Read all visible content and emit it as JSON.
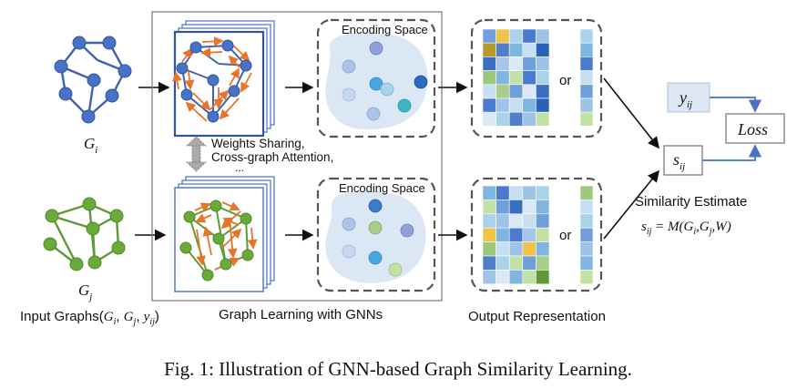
{
  "figure": {
    "caption": "Fig. 1: Illustration of GNN-based Graph Similarity Learning.",
    "labels": {
      "gi": "G",
      "gi_sub": "i",
      "gj": "G",
      "gj_sub": "j",
      "input_graphs": "Input Graphs(",
      "input_graphs_args": "G",
      "weights_sharing": "Weights Sharing,",
      "cross_graph_attention": "Cross-graph Attention,",
      "ellipsis": "...",
      "encoding_space_top": "Encoding Space",
      "encoding_space_bottom": "Encoding Space",
      "or_top": "or",
      "or_bottom": "or",
      "graph_learning": "Graph Learning with GNNs",
      "output_representation": "Output Representation",
      "y_ij": "y",
      "y_ij_sub": "ij",
      "s_ij": "s",
      "s_ij_sub": "ij",
      "loss": "Loss",
      "similarity_estimate": "Similarity Estimate",
      "formula": "s",
      "formula_sub": "ij",
      "formula_rest": " = M(G",
      "formula_rest2": "i",
      "formula_rest3": ",G",
      "formula_rest4": "j",
      "formula_rest5": ",W)"
    },
    "colors": {
      "graph_blue": "#4a72c4",
      "graph_blue_edge": "#3e64b0",
      "graph_green": "#6aaa3a",
      "graph_green_edge": "#5f9a34",
      "arrow_orange": "#e8732a",
      "encoding_bg": "#dbe7f5",
      "y_box": "#dce6f4",
      "connector": "#4a72c4"
    }
  }
}
